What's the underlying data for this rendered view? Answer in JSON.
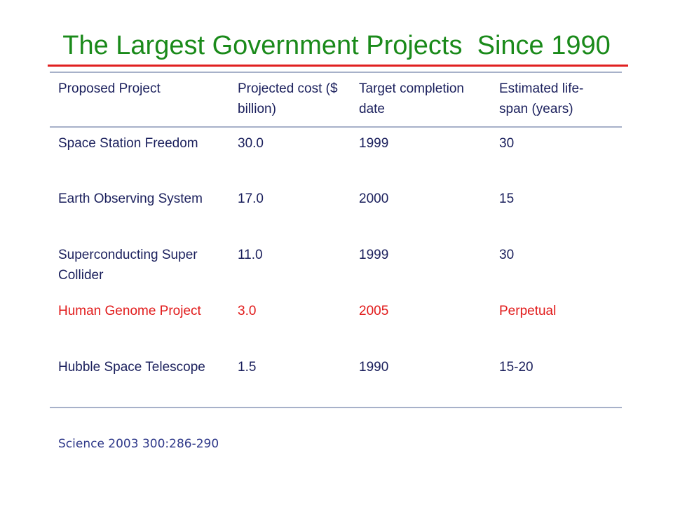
{
  "title": "The Largest Government Projects  Since 1990",
  "table": {
    "headers": [
      "Proposed Project",
      "Projected cost ($ billion)",
      "Target completion date",
      "Estimated life-span (years)"
    ],
    "rows": [
      {
        "project": "Space Station Freedom",
        "cost": "30.0",
        "completion": "1999",
        "lifespan": "30",
        "highlight": false
      },
      {
        "project": "Earth Observing System",
        "cost": "17.0",
        "completion": "2000",
        "lifespan": "15",
        "highlight": false
      },
      {
        "project": "Superconducting Super Collider",
        "cost": "11.0",
        "completion": "1999",
        "lifespan": "30",
        "highlight": false
      },
      {
        "project": "Human Genome Project",
        "cost": "3.0",
        "completion": "2005",
        "lifespan": "Perpetual",
        "highlight": true
      },
      {
        "project": "Hubble Space Telescope",
        "cost": "1.5",
        "completion": "1990",
        "lifespan": "15-20",
        "highlight": false
      }
    ]
  },
  "citation": "Science 2003 300:286-290",
  "colors": {
    "title": "#1a8a1a",
    "title_rule": "#e02020",
    "table_text": "#1a1f5c",
    "highlight_text": "#e11a1a",
    "rule": "#a7b1c9",
    "citation": "#303a8a"
  }
}
